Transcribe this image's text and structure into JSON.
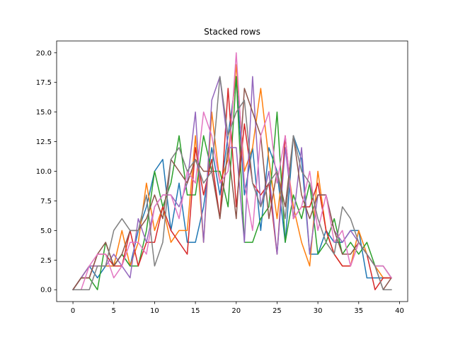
{
  "chart_data": {
    "type": "line",
    "title": "Stacked rows",
    "xlabel": "",
    "ylabel": "",
    "xlim": [
      -2,
      41
    ],
    "ylim": [
      -1,
      21
    ],
    "xticks": [
      0,
      5,
      10,
      15,
      20,
      25,
      30,
      35,
      40
    ],
    "yticks": [
      0.0,
      2.5,
      5.0,
      7.5,
      10.0,
      12.5,
      15.0,
      17.5,
      20.0
    ],
    "xtick_labels": [
      "0",
      "5",
      "10",
      "15",
      "20",
      "25",
      "30",
      "35",
      "40"
    ],
    "ytick_labels": [
      "0.0",
      "2.5",
      "5.0",
      "7.5",
      "10.0",
      "12.5",
      "15.0",
      "17.5",
      "20.0"
    ],
    "grid": false,
    "x": [
      0,
      1,
      2,
      3,
      4,
      5,
      6,
      7,
      8,
      9,
      10,
      11,
      12,
      13,
      14,
      15,
      16,
      17,
      18,
      19,
      20,
      21,
      22,
      23,
      24,
      25,
      26,
      27,
      28,
      29,
      30,
      31,
      32,
      33,
      34,
      35,
      36,
      37,
      38,
      39
    ],
    "series": [
      {
        "color": "#1f77b4",
        "values": [
          0,
          1,
          2,
          1,
          2,
          2,
          3,
          2,
          5,
          7,
          10,
          11,
          5,
          9,
          4,
          4,
          7,
          12,
          8,
          13,
          18,
          8,
          12,
          5,
          12,
          10,
          4,
          13,
          11,
          3,
          3,
          5,
          4,
          4,
          5,
          5,
          1,
          1,
          1,
          1
        ]
      },
      {
        "color": "#ff7f0e",
        "values": [
          0,
          1,
          2,
          2,
          2,
          2,
          5,
          2,
          4,
          9,
          5,
          7,
          4,
          5,
          5,
          13,
          4,
          15,
          9,
          11,
          19,
          10,
          12,
          17,
          11,
          6,
          12,
          7,
          4,
          2,
          10,
          5,
          3,
          2,
          2,
          5,
          3,
          2,
          1,
          1
        ]
      },
      {
        "color": "#2ca02c",
        "values": [
          0,
          1,
          1,
          0,
          4,
          2,
          3,
          2,
          2,
          5,
          10,
          7,
          9,
          13,
          8,
          8,
          13,
          10,
          10,
          7,
          18,
          4,
          4,
          6,
          7,
          15,
          4,
          8,
          6,
          9,
          3,
          4,
          6,
          3,
          4,
          3,
          4,
          2,
          2,
          1
        ]
      },
      {
        "color": "#d62728",
        "values": [
          0,
          1,
          1,
          3,
          3,
          2,
          2,
          5,
          2,
          4,
          4,
          7,
          5,
          4,
          3,
          12,
          8,
          11,
          6,
          17,
          7,
          14,
          9,
          8,
          9,
          3,
          13,
          6,
          7,
          7,
          9,
          5,
          3,
          2,
          2,
          4,
          3,
          0,
          1,
          1
        ]
      },
      {
        "color": "#9467bd",
        "values": [
          0,
          1,
          2,
          2,
          2,
          3,
          2,
          1,
          6,
          4,
          7,
          8,
          8,
          7,
          9,
          15,
          4,
          16,
          18,
          12,
          12,
          4,
          18,
          7,
          10,
          3,
          12,
          6,
          12,
          3,
          8,
          8,
          5,
          4,
          5,
          4,
          3,
          2,
          2,
          1
        ]
      },
      {
        "color": "#8c564b",
        "values": [
          0,
          1,
          1,
          3,
          4,
          2,
          3,
          5,
          5,
          6,
          8,
          6,
          11,
          10,
          9,
          11,
          10,
          10,
          6,
          12,
          6,
          17,
          15,
          13,
          6,
          10,
          7,
          13,
          8,
          6,
          8,
          8,
          5,
          3,
          3,
          4,
          3,
          2,
          0,
          1
        ]
      },
      {
        "color": "#e377c2",
        "values": [
          0,
          0,
          2,
          3,
          3,
          1,
          2,
          4,
          4,
          3,
          7,
          8,
          8,
          6,
          10,
          9,
          15,
          13,
          9,
          10,
          20,
          9,
          5,
          13,
          15,
          9,
          13,
          6,
          7,
          10,
          5,
          8,
          4,
          5,
          2,
          4,
          3,
          2,
          2,
          1
        ]
      },
      {
        "color": "#7f7f7f",
        "values": [
          0,
          0,
          0,
          2,
          2,
          5,
          6,
          5,
          5,
          8,
          2,
          4,
          11,
          12,
          10,
          11,
          9,
          10,
          18,
          13,
          15,
          16,
          9,
          7,
          9,
          10,
          6,
          13,
          10,
          9,
          6,
          4,
          3,
          7,
          6,
          4,
          3,
          2,
          0,
          0
        ]
      }
    ]
  }
}
